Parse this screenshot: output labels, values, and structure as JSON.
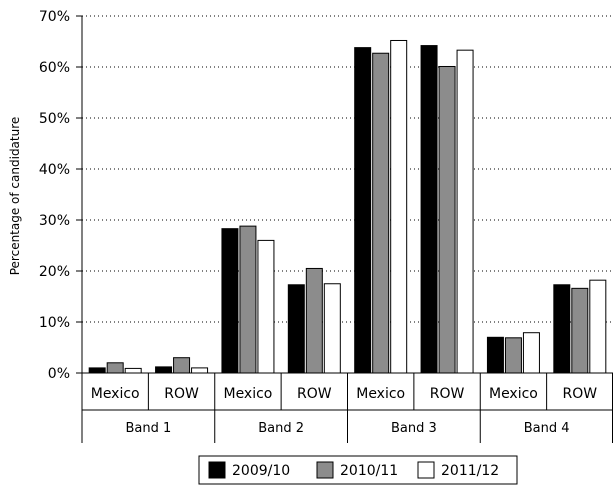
{
  "chart_data": {
    "type": "bar",
    "ylabel": "Percentage of candidature",
    "ylim": [
      0,
      70
    ],
    "yticks": [
      0,
      10,
      20,
      30,
      40,
      50,
      60,
      70
    ],
    "ytick_labels": [
      "0%",
      "10%",
      "20%",
      "30%",
      "40%",
      "50%",
      "60%",
      "70%"
    ],
    "grid": "horizontal dotted",
    "legend_position": "bottom",
    "groups": [
      {
        "label": "Band 1",
        "categories": [
          "Mexico",
          "ROW"
        ]
      },
      {
        "label": "Band 2",
        "categories": [
          "Mexico",
          "ROW"
        ]
      },
      {
        "label": "Band 3",
        "categories": [
          "Mexico",
          "ROW"
        ]
      },
      {
        "label": "Band 4",
        "categories": [
          "Mexico",
          "ROW"
        ]
      }
    ],
    "categories": [
      "Mexico",
      "ROW",
      "Mexico",
      "ROW",
      "Mexico",
      "ROW",
      "Mexico",
      "ROW"
    ],
    "series": [
      {
        "name": "2009/10",
        "color": "#000000",
        "values": [
          1.0,
          1.2,
          28.3,
          17.3,
          63.8,
          64.2,
          7.0,
          17.3
        ]
      },
      {
        "name": "2010/11",
        "color": "#8c8c8c",
        "values": [
          2.0,
          3.0,
          28.8,
          20.5,
          62.7,
          60.1,
          6.9,
          16.6
        ]
      },
      {
        "name": "2011/12",
        "color": "#ffffff",
        "values": [
          0.9,
          1.0,
          26.0,
          17.5,
          65.2,
          63.3,
          7.9,
          18.2
        ]
      }
    ]
  }
}
